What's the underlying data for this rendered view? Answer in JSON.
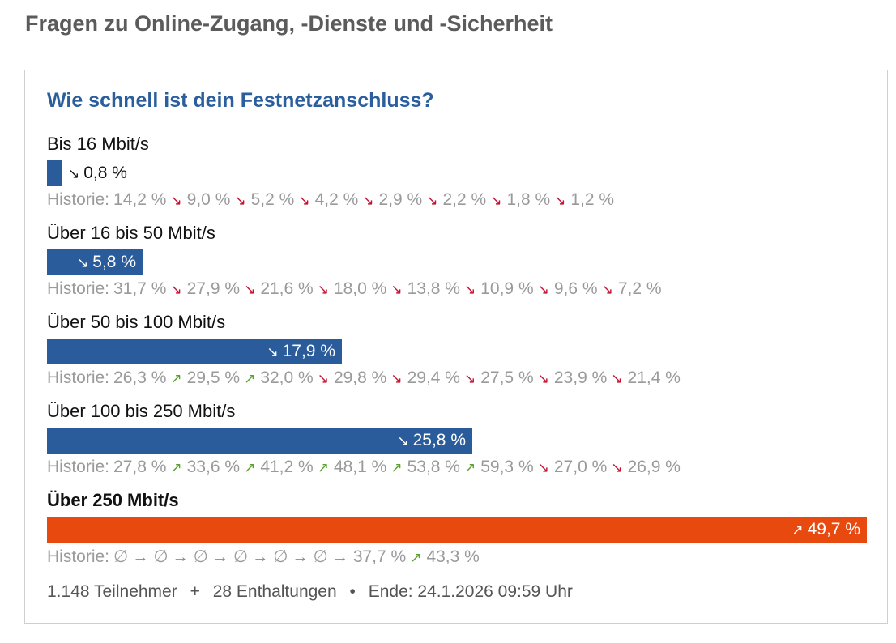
{
  "page_title": "Fragen zu Online-Zugang, -Dienste und -Sicherheit",
  "question": "Wie schnell ist dein Festnetzanschluss?",
  "history_label": "Historie:",
  "colors": {
    "bar": "#2a5b9a",
    "winner_bar": "#e8490f",
    "trend_down": "#c8102e",
    "trend_up": "#5aa02c"
  },
  "chart_data": {
    "type": "bar",
    "orientation": "horizontal",
    "unit": "%",
    "categories": [
      "Bis 16 Mbit/s",
      "Über 16 bis 50 Mbit/s",
      "Über 50 bis 100 Mbit/s",
      "Über 100 bis 250 Mbit/s",
      "Über 250 Mbit/s"
    ],
    "values": [
      0.8,
      5.8,
      17.9,
      25.8,
      49.7
    ],
    "value_labels": [
      "0,8 %",
      "5,8 %",
      "17,9 %",
      "25,8 %",
      "49,7 %"
    ],
    "trends": [
      "down",
      "down",
      "down",
      "down",
      "up"
    ],
    "winner_index": 4,
    "history": [
      [
        {
          "trend": "",
          "label": "14,2 %"
        },
        {
          "trend": "down",
          "label": "9,0 %"
        },
        {
          "trend": "down",
          "label": "5,2 %"
        },
        {
          "trend": "down",
          "label": "4,2 %"
        },
        {
          "trend": "down",
          "label": "2,9 %"
        },
        {
          "trend": "down",
          "label": "2,2 %"
        },
        {
          "trend": "down",
          "label": "1,8 %"
        },
        {
          "trend": "down",
          "label": "1,2 %"
        }
      ],
      [
        {
          "trend": "",
          "label": "31,7 %"
        },
        {
          "trend": "down",
          "label": "27,9 %"
        },
        {
          "trend": "down",
          "label": "21,6 %"
        },
        {
          "trend": "down",
          "label": "18,0 %"
        },
        {
          "trend": "down",
          "label": "13,8 %"
        },
        {
          "trend": "down",
          "label": "10,9 %"
        },
        {
          "trend": "down",
          "label": "9,6 %"
        },
        {
          "trend": "down",
          "label": "7,2 %"
        }
      ],
      [
        {
          "trend": "",
          "label": "26,3 %"
        },
        {
          "trend": "up",
          "label": "29,5 %"
        },
        {
          "trend": "up",
          "label": "32,0 %"
        },
        {
          "trend": "down",
          "label": "29,8 %"
        },
        {
          "trend": "down",
          "label": "29,4 %"
        },
        {
          "trend": "down",
          "label": "27,5 %"
        },
        {
          "trend": "down",
          "label": "23,9 %"
        },
        {
          "trend": "down",
          "label": "21,4 %"
        }
      ],
      [
        {
          "trend": "",
          "label": "27,8 %"
        },
        {
          "trend": "up",
          "label": "33,6 %"
        },
        {
          "trend": "up",
          "label": "41,2 %"
        },
        {
          "trend": "up",
          "label": "48,1 %"
        },
        {
          "trend": "up",
          "label": "53,8 %"
        },
        {
          "trend": "up",
          "label": "59,3 %"
        },
        {
          "trend": "down",
          "label": "27,0 %"
        },
        {
          "trend": "down",
          "label": "26,9 %"
        }
      ],
      [
        {
          "trend": "",
          "label": "∅"
        },
        {
          "trend": "same",
          "label": "∅"
        },
        {
          "trend": "same",
          "label": "∅"
        },
        {
          "trend": "same",
          "label": "∅"
        },
        {
          "trend": "same",
          "label": "∅"
        },
        {
          "trend": "same",
          "label": "∅"
        },
        {
          "trend": "same",
          "label": "37,7 %"
        },
        {
          "trend": "up",
          "label": "43,3 %"
        }
      ]
    ]
  },
  "footer": {
    "participants": "1.148 Teilnehmer",
    "plus": "+",
    "abstentions": "28 Enthaltungen",
    "bullet": "•",
    "end": "Ende: 24.1.2026 09:59 Uhr"
  }
}
